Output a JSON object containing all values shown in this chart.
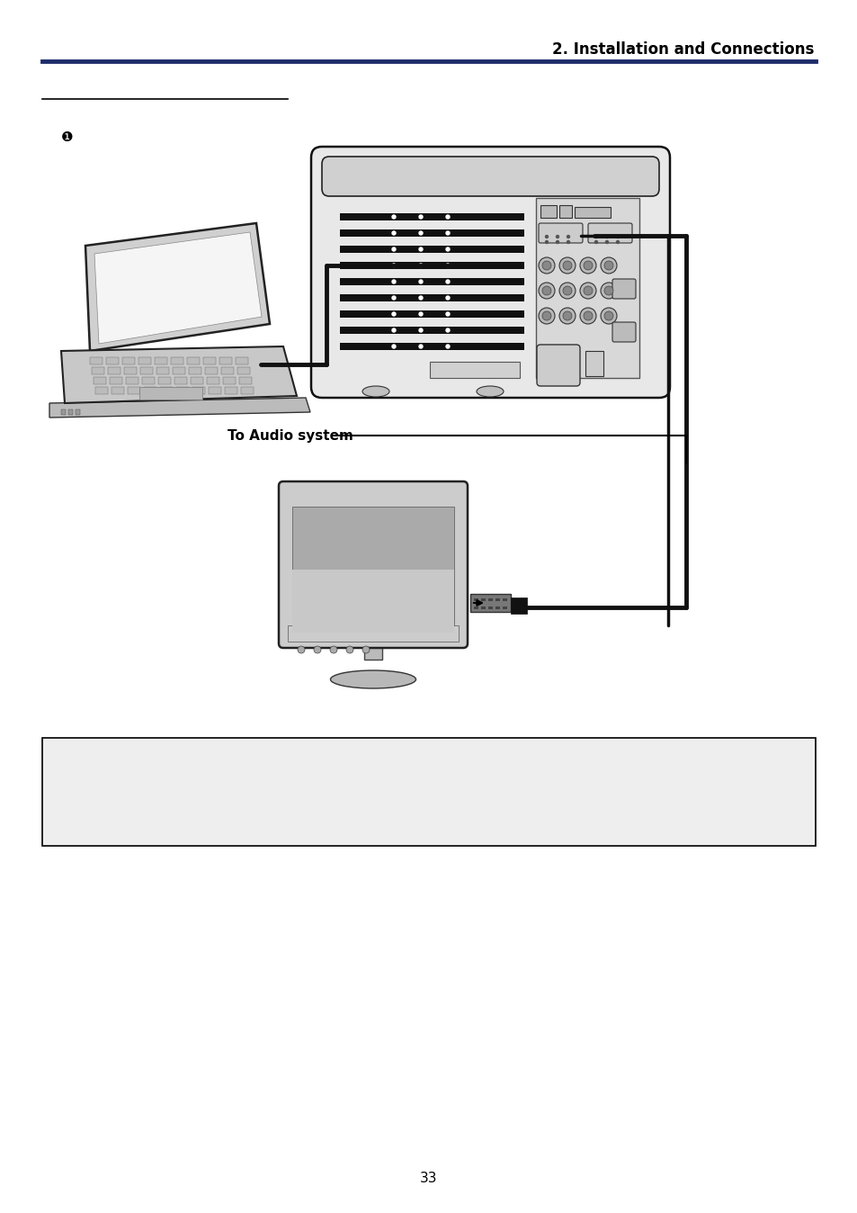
{
  "page_title": "2. Installation and Connections",
  "title_color": "#000000",
  "header_line_color": "#1e2d6b",
  "section_underline_color": "#000000",
  "background_color": "#ffffff",
  "note_box_color": "#eeeeee",
  "note_box_border": "#000000",
  "page_number": "33",
  "bullet_symbol": "❶",
  "audio_label": "To Audio system",
  "figsize": [
    9.54,
    13.48
  ],
  "dpi": 100
}
